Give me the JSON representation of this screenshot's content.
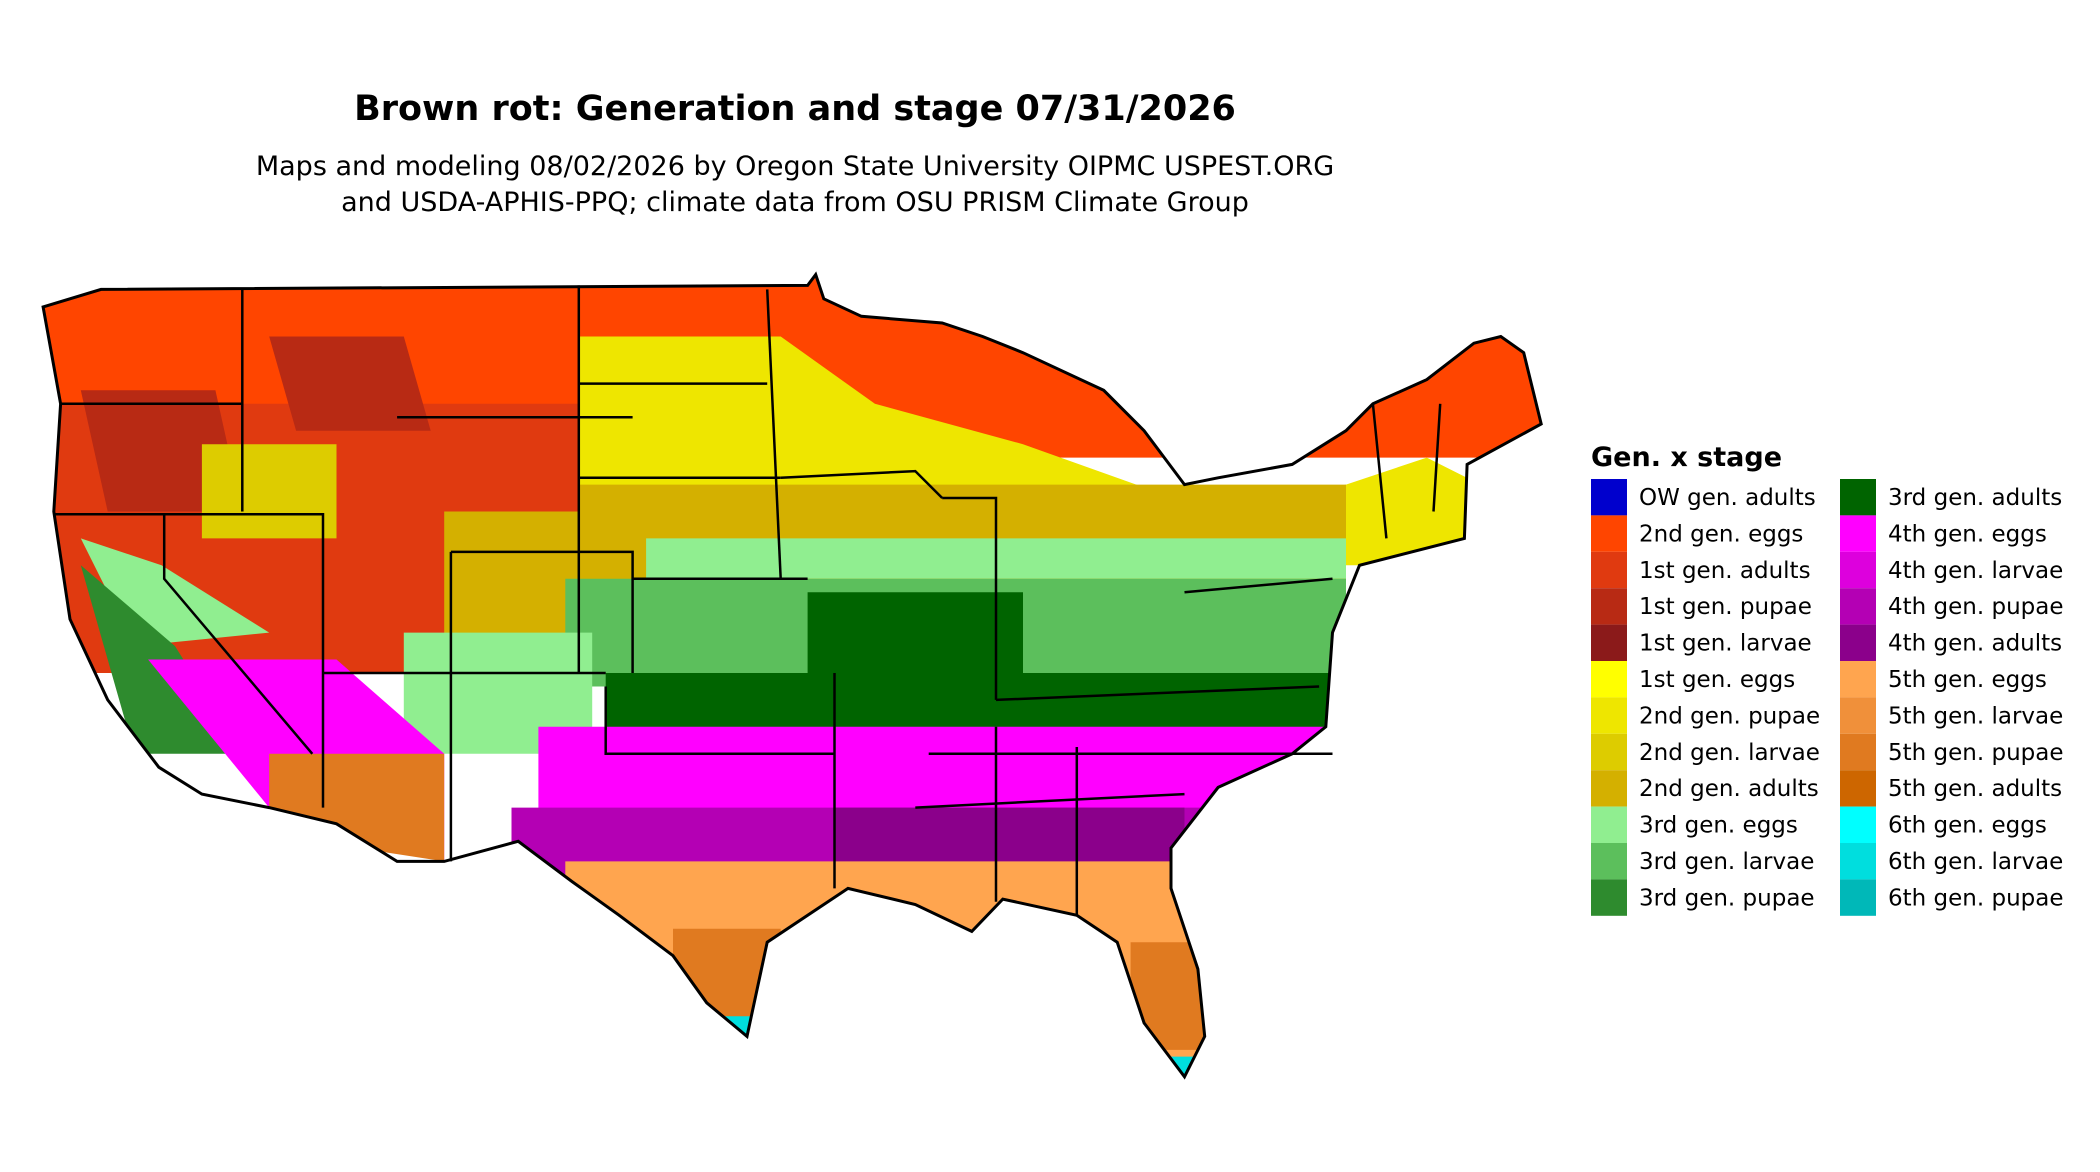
{
  "header": {
    "title": "Brown rot: Generation and stage 07/31/2026",
    "subtitle_lines": [
      "Maps and modeling 08/02/2026 by Oregon State University OIPMC USPEST.ORG",
      "and USDA-APHIS-PPQ; climate data from OSU PRISM Climate Group"
    ]
  },
  "legend": {
    "title": "Gen. x stage",
    "items": [
      {
        "label": "OW gen. adults",
        "color": "#0000cd"
      },
      {
        "label": "2nd gen. eggs",
        "color": "#ff4500"
      },
      {
        "label": "1st gen. adults",
        "color": "#e03a10"
      },
      {
        "label": "1st gen. pupae",
        "color": "#b82a14"
      },
      {
        "label": "1st gen. larvae",
        "color": "#8b1a1a"
      },
      {
        "label": "1st gen. eggs",
        "color": "#ffff00"
      },
      {
        "label": "2nd gen. pupae",
        "color": "#eee600"
      },
      {
        "label": "2nd gen. larvae",
        "color": "#ddcc00"
      },
      {
        "label": "2nd gen. adults",
        "color": "#d4b000"
      },
      {
        "label": "3rd gen. eggs",
        "color": "#90ee90"
      },
      {
        "label": "3rd gen. larvae",
        "color": "#5cbf5c"
      },
      {
        "label": "3rd gen. pupae",
        "color": "#2e8b2e"
      },
      {
        "label": "3rd gen. adults",
        "color": "#006400"
      },
      {
        "label": "4th gen. eggs",
        "color": "#ff00ff"
      },
      {
        "label": "4th gen. larvae",
        "color": "#dd00dd"
      },
      {
        "label": "4th gen. pupae",
        "color": "#b400b4"
      },
      {
        "label": "4th gen. adults",
        "color": "#8b008b"
      },
      {
        "label": "5th gen. eggs",
        "color": "#ffa54f"
      },
      {
        "label": "5th gen. larvae",
        "color": "#f0903a"
      },
      {
        "label": "5th gen. pupae",
        "color": "#e07a20"
      },
      {
        "label": "5th gen. adults",
        "color": "#cd6600"
      },
      {
        "label": "6th gen. eggs",
        "color": "#00ffff"
      },
      {
        "label": "6th gen. larvae",
        "color": "#00dede"
      },
      {
        "label": "6th gen. pupae",
        "color": "#00b8b8"
      }
    ]
  }
}
